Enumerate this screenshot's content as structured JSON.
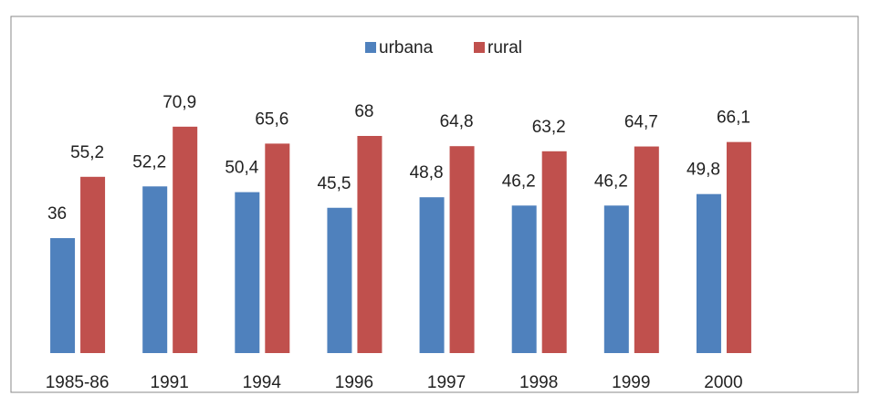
{
  "chart_data": {
    "type": "bar",
    "categories": [
      "1985-86",
      "1991",
      "1994",
      "1996",
      "1997",
      "1998",
      "1999",
      "2000"
    ],
    "series": [
      {
        "name": "urbana",
        "color": "#4f81bd",
        "values": [
          36,
          52.2,
          50.4,
          45.5,
          48.8,
          46.2,
          46.2,
          49.8
        ],
        "value_labels": [
          "36",
          "52,2",
          "50,4",
          "45,5",
          "48,8",
          "46,2",
          "46,2",
          "49,8"
        ]
      },
      {
        "name": "rural",
        "color": "#c0504d",
        "values": [
          55.2,
          70.9,
          65.6,
          68,
          64.8,
          63.2,
          64.7,
          66.1
        ],
        "value_labels": [
          "55,2",
          "70,9",
          "65,6",
          "68",
          "64,8",
          "63,2",
          "64,7",
          "66,1"
        ]
      }
    ],
    "ylim": [
      0,
      80
    ],
    "legend": "top"
  }
}
